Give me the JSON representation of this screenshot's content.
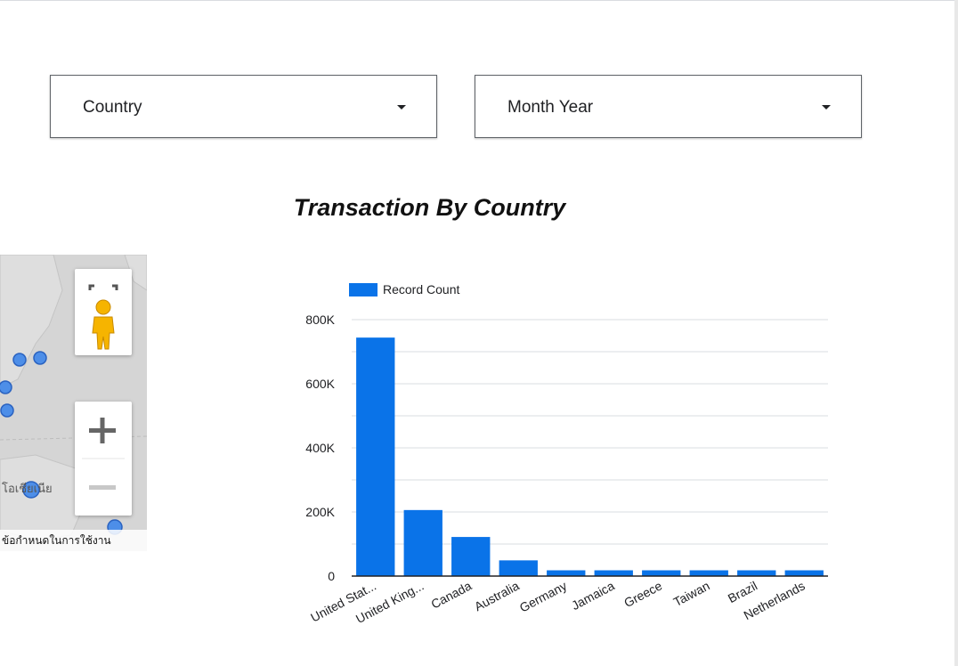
{
  "filters": {
    "country": {
      "label": "Country"
    },
    "month_year": {
      "label": "Month Year"
    }
  },
  "map": {
    "place_label": "โอเชียเนีย",
    "terms_label": "ข้อกำหนดในการใช้งาน",
    "icons": [
      "fullscreen-icon",
      "pegman-icon",
      "zoom-in-icon",
      "zoom-out-icon"
    ]
  },
  "chart_data": {
    "type": "bar",
    "title": "Transaction By Country",
    "legend": "Record Count",
    "legend_position": "top-left",
    "categories": [
      "United Stat...",
      "United King...",
      "Canada",
      "Australia",
      "Germany",
      "Jamaica",
      "Greece",
      "Taiwan",
      "Brazil",
      "Netherlands"
    ],
    "series": [
      {
        "name": "Record Count",
        "values": [
          744000,
          206000,
          122000,
          49000,
          18000,
          18000,
          18000,
          18000,
          18000,
          18000
        ]
      }
    ],
    "ylim": [
      0,
      800000
    ],
    "yticks": [
      "0",
      "200K",
      "400K",
      "600K",
      "800K"
    ],
    "grid": true,
    "color": "#0a73e8"
  }
}
